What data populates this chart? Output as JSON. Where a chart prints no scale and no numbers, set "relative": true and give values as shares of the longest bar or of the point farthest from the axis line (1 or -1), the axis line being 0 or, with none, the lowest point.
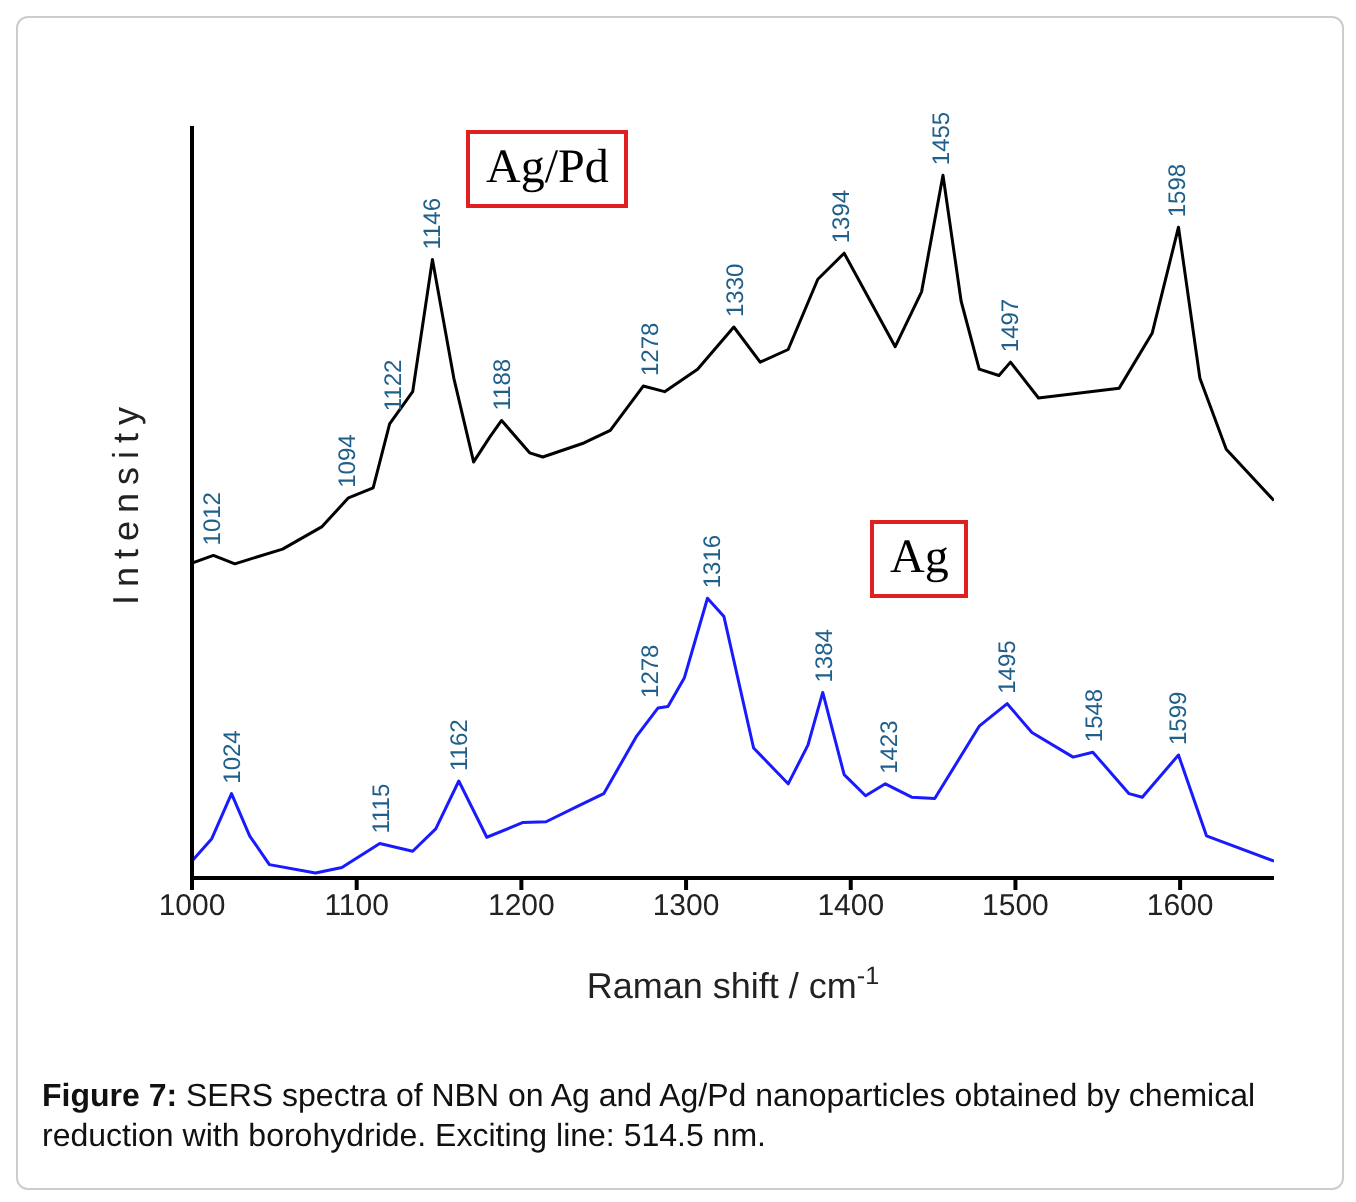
{
  "chart_data": {
    "type": "line",
    "relative": true,
    "xlabel": "Raman shift / cm$^{-1}$",
    "ylabel": "Intensity",
    "xlim": [
      1000,
      1657
    ],
    "xticks": [
      1000,
      1100,
      1200,
      1300,
      1400,
      1500,
      1600
    ],
    "legend": false,
    "grid": false,
    "marker": "none",
    "line_style": "solid",
    "series": [
      {
        "name": "Ag/Pd",
        "color": "#000000",
        "x": [
          1000,
          1013,
          1026,
          1055,
          1079,
          1095,
          1110,
          1120,
          1134,
          1146,
          1159,
          1171,
          1181,
          1188,
          1205,
          1213,
          1238,
          1254,
          1274,
          1287,
          1307,
          1329,
          1345,
          1362,
          1380,
          1396,
          1427,
          1443,
          1456,
          1467,
          1478,
          1490,
          1497,
          1514,
          1563,
          1583,
          1599,
          1612,
          1628,
          1657
        ],
        "values": [
          0.448,
          0.459,
          0.447,
          0.468,
          0.5,
          0.541,
          0.555,
          0.646,
          0.692,
          0.88,
          0.711,
          0.592,
          0.628,
          0.651,
          0.605,
          0.599,
          0.619,
          0.637,
          0.7,
          0.692,
          0.724,
          0.784,
          0.734,
          0.752,
          0.852,
          0.889,
          0.756,
          0.834,
          1.0,
          0.821,
          0.724,
          0.715,
          0.734,
          0.683,
          0.697,
          0.775,
          0.926,
          0.711,
          0.61,
          0.537
        ]
      },
      {
        "name": "Ag",
        "color": "#1a1aff",
        "x": [
          1000,
          1012,
          1024,
          1035,
          1047,
          1075,
          1091,
          1114,
          1134,
          1148,
          1162,
          1179,
          1201,
          1215,
          1234,
          1250,
          1270,
          1283,
          1289,
          1299,
          1313,
          1323,
          1341,
          1362,
          1374,
          1383,
          1396,
          1409,
          1421,
          1437,
          1451,
          1478,
          1495,
          1510,
          1535,
          1547,
          1569,
          1577,
          1599,
          1616,
          1657
        ],
        "values": [
          0.024,
          0.056,
          0.12,
          0.06,
          0.019,
          0.007,
          0.015,
          0.049,
          0.038,
          0.07,
          0.138,
          0.058,
          0.079,
          0.08,
          0.102,
          0.12,
          0.202,
          0.242,
          0.244,
          0.285,
          0.398,
          0.372,
          0.185,
          0.134,
          0.189,
          0.264,
          0.147,
          0.117,
          0.134,
          0.115,
          0.113,
          0.216,
          0.248,
          0.207,
          0.172,
          0.179,
          0.12,
          0.115,
          0.175,
          0.06,
          0.024
        ]
      }
    ],
    "annotations": [
      {
        "text": "1012",
        "x": 1012,
        "y": 0.459
      },
      {
        "text": "1094",
        "x": 1094,
        "y": 0.541
      },
      {
        "text": "1122",
        "x": 1122,
        "y": 0.65
      },
      {
        "text": "1146",
        "x": 1146,
        "y": 0.88
      },
      {
        "text": "1188",
        "x": 1188,
        "y": 0.651
      },
      {
        "text": "1278",
        "x": 1278,
        "y": 0.7
      },
      {
        "text": "1330",
        "x": 1330,
        "y": 0.784
      },
      {
        "text": "1394",
        "x": 1394,
        "y": 0.889
      },
      {
        "text": "1455",
        "x": 1455,
        "y": 1.0
      },
      {
        "text": "1497",
        "x": 1497,
        "y": 0.734
      },
      {
        "text": "1598",
        "x": 1598,
        "y": 0.926
      },
      {
        "text": "1024",
        "x": 1024,
        "y": 0.12
      },
      {
        "text": "1115",
        "x": 1115,
        "y": 0.049
      },
      {
        "text": "1162",
        "x": 1162,
        "y": 0.138
      },
      {
        "text": "1278",
        "x": 1278,
        "y": 0.242
      },
      {
        "text": "1316",
        "x": 1316,
        "y": 0.398
      },
      {
        "text": "1384",
        "x": 1384,
        "y": 0.264
      },
      {
        "text": "1423",
        "x": 1423,
        "y": 0.134
      },
      {
        "text": "1495",
        "x": 1495,
        "y": 0.248
      },
      {
        "text": "1548",
        "x": 1548,
        "y": 0.179
      },
      {
        "text": "1599",
        "x": 1599,
        "y": 0.175
      },
      "Figure 7: SERS spectra of NBN on Ag and Ag/Pd nanoparticles obtained by chemical reduction with borohydride. Exciting line: 514.5 nm."
    ]
  }
}
